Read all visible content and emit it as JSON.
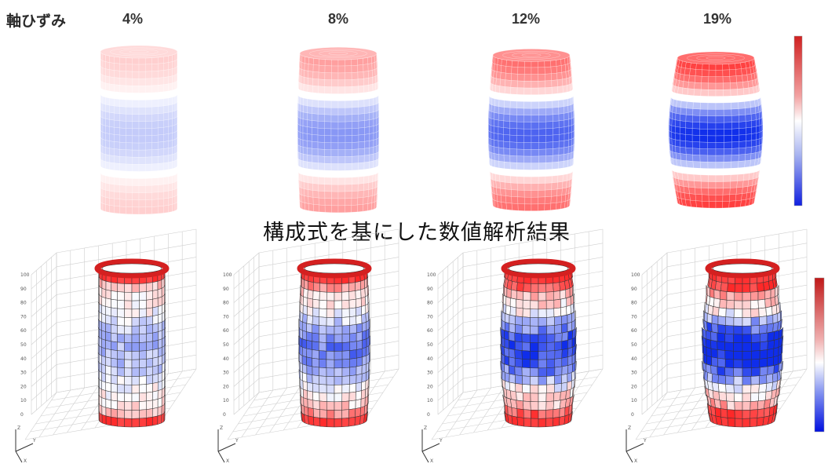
{
  "header": {
    "axis_label": "軸ひずみ",
    "strains": [
      "4%",
      "8%",
      "12%",
      "19%"
    ]
  },
  "section_title": "構成式を基にした数値解析結果",
  "colors": {
    "tension": "#d62828",
    "compression": "#1030e0",
    "neutral": "#ffffff",
    "mesh": "#555555"
  },
  "top_row": {
    "items": [
      {
        "strain": "4%",
        "bulge": 0.0,
        "intensity": 0.25
      },
      {
        "strain": "8%",
        "bulge": 0.06,
        "intensity": 0.5
      },
      {
        "strain": "12%",
        "bulge": 0.12,
        "intensity": 0.75
      },
      {
        "strain": "19%",
        "bulge": 0.22,
        "intensity": 1.0
      }
    ]
  },
  "bottom_row": {
    "items": [
      {
        "strain": "4%",
        "bulge": 0.02,
        "intensity": 0.3
      },
      {
        "strain": "8%",
        "bulge": 0.08,
        "intensity": 0.55
      },
      {
        "strain": "12%",
        "bulge": 0.15,
        "intensity": 0.8
      },
      {
        "strain": "19%",
        "bulge": 0.22,
        "intensity": 1.0
      }
    ],
    "axis_z_label": "Z",
    "axis_y_label": "Y",
    "axis_x_label": "X"
  }
}
